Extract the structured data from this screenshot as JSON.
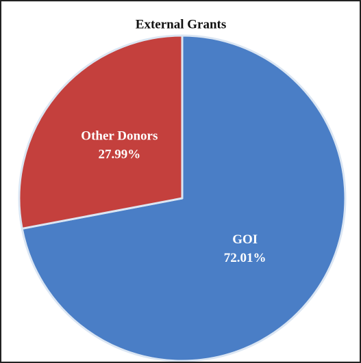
{
  "chart_data": {
    "type": "pie",
    "title": "External Grants",
    "categories": [
      "GOI",
      "Other Donors"
    ],
    "values": [
      72.01,
      27.99
    ],
    "value_labels": [
      "72.01%",
      "27.99%"
    ],
    "colors": [
      "#4a7ec6",
      "#c4403d"
    ]
  }
}
